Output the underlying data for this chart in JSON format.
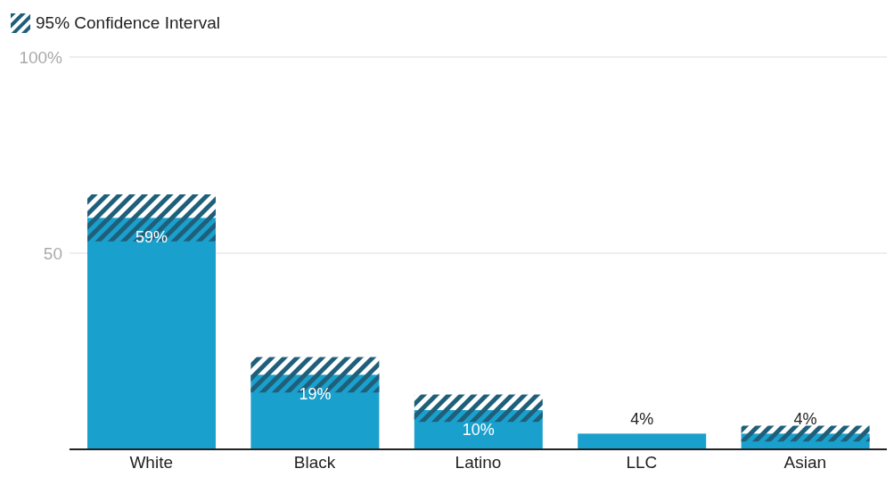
{
  "chart_data": {
    "type": "bar",
    "categories": [
      "White",
      "Black",
      "Latino",
      "LLC",
      "Asian"
    ],
    "values": [
      59,
      19,
      10,
      4,
      4
    ],
    "value_labels": [
      "59%",
      "19%",
      "10%",
      "4%",
      "4%"
    ],
    "errors": [
      [
        53,
        65
      ],
      [
        14.5,
        23.5
      ],
      [
        7,
        14
      ],
      null,
      [
        2,
        6
      ]
    ],
    "color": "#1aa0cd",
    "ylim": [
      0,
      100
    ],
    "yticks": [
      {
        "value": 0,
        "label": null
      },
      50,
      {
        "value": 100,
        "label": "100%"
      }
    ],
    "grid": "y",
    "legend": false,
    "annotations": [
      "95% Confidence Interval"
    ]
  }
}
